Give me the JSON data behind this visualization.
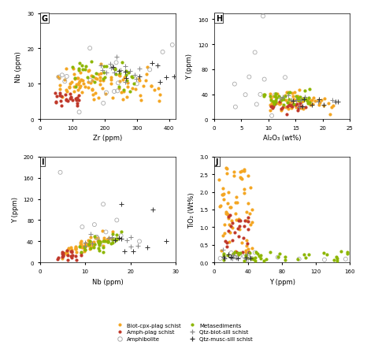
{
  "panels": [
    {
      "label": "G",
      "xlabel": "Zr (ppm)",
      "ylabel": "Nb (ppm)",
      "xlim": [
        0,
        420
      ],
      "ylim": [
        0,
        30
      ],
      "xticks": [
        0,
        100,
        200,
        300,
        400
      ],
      "yticks": [
        0,
        10,
        20,
        30
      ]
    },
    {
      "label": "H",
      "xlabel": "Al₂O₃ (wt%)",
      "ylabel": "Y (ppm)",
      "xlim": [
        0,
        25
      ],
      "ylim": [
        0,
        170
      ],
      "xticks": [
        0,
        5,
        10,
        15,
        20,
        25
      ],
      "yticks": [
        0,
        40,
        80,
        120,
        160
      ]
    },
    {
      "label": "I",
      "xlabel": "Nb (ppm)",
      "ylabel": "Y (ppm)",
      "xlim": [
        0,
        30
      ],
      "ylim": [
        0,
        200
      ],
      "xticks": [
        0,
        10,
        20,
        30
      ],
      "yticks": [
        0,
        40,
        80,
        120,
        160,
        200
      ]
    },
    {
      "label": "J",
      "xlabel": "Y (ppm)",
      "ylabel": "TiO₂ (Wt%)",
      "xlim": [
        0,
        160
      ],
      "ylim": [
        0,
        3
      ],
      "xticks": [
        0,
        40,
        80,
        120,
        160
      ],
      "yticks": [
        0,
        0.5,
        1.0,
        1.5,
        2.0,
        2.5,
        3.0
      ]
    }
  ],
  "colors": {
    "biot_cpx": "#F4A623",
    "amph_plag": "#C0392B",
    "amphibolite": "#AAAAAA",
    "metasediments": "#8DB600",
    "qtz_biot": "#888888",
    "qtz_musc": "#333333"
  },
  "legend": [
    {
      "label": "Biot-cpx-plag schist",
      "color": "#F4A623",
      "marker": "o"
    },
    {
      "label": "Amph-plag schist",
      "color": "#C0392B",
      "marker": "o"
    },
    {
      "label": "Amphibolite",
      "color": "#AAAAAA",
      "marker": "o"
    },
    {
      "label": "Metasediments",
      "color": "#8DB600",
      "marker": "o"
    },
    {
      "label": "Qtz-biot-sill schist",
      "color": "#888888",
      "marker": "+"
    },
    {
      "label": "Qtz-musc-sill schist",
      "color": "#333333",
      "marker": "+"
    }
  ],
  "bg": "#ffffff"
}
